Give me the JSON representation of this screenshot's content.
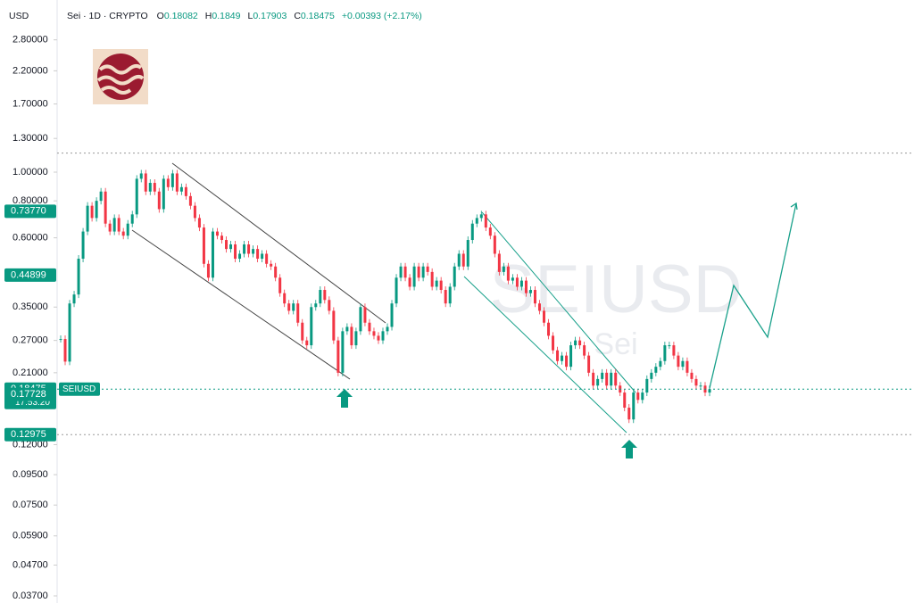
{
  "chart_data": {
    "type": "candlestick",
    "currency": "USD",
    "title": "Sei · 1D · CRYPTO",
    "ohlc": [
      {
        "label": "O",
        "value": 0.18082
      },
      {
        "label": "H",
        "value": 0.1849
      },
      {
        "label": "L",
        "value": 0.17903
      },
      {
        "label": "C",
        "value": 0.18475
      }
    ],
    "change": "+0.00393 (+2.17%)",
    "watermark": "SEIUSD",
    "watermark_sub": "Sei",
    "symbol": "SEIUSD",
    "countdown": "17:53:20",
    "log_scale": true,
    "ylim": [
      0.035,
      3.1
    ],
    "yticks": [
      {
        "value": 2.8,
        "label": "2.80000"
      },
      {
        "value": 2.2,
        "label": "2.20000"
      },
      {
        "value": 1.7,
        "label": "1.70000"
      },
      {
        "value": 1.3,
        "label": "1.30000"
      },
      {
        "value": 1.0,
        "label": "1.00000"
      },
      {
        "value": 0.8,
        "label": "0.80000"
      },
      {
        "value": 0.6,
        "label": "0.60000"
      },
      {
        "value": 0.35,
        "label": "0.35000"
      },
      {
        "value": 0.27,
        "label": "0.27000"
      },
      {
        "value": 0.21,
        "label": "0.21000"
      },
      {
        "value": 0.12,
        "label": "0.12000"
      },
      {
        "value": 0.095,
        "label": "0.09500"
      },
      {
        "value": 0.075,
        "label": "0.07500"
      },
      {
        "value": 0.059,
        "label": "0.05900"
      },
      {
        "value": 0.047,
        "label": "0.04700"
      },
      {
        "value": 0.037,
        "label": "0.03700"
      }
    ],
    "price_labels": [
      {
        "value": 0.7377,
        "label": "0.73770"
      },
      {
        "value": 0.44899,
        "label": "0.44899"
      },
      {
        "value": 0.18475,
        "label": "0.18475"
      },
      {
        "value": 0.17728,
        "label": "0.17728"
      },
      {
        "value": 0.12975,
        "label": "0.12975"
      }
    ],
    "hlines": [
      1.16
    ],
    "up_color": "#089981",
    "down_color": "#f23645",
    "values": [
      0.273,
      0.229,
      0.36,
      0.386,
      0.51,
      0.63,
      0.77,
      0.7,
      0.8,
      0.86,
      0.67,
      0.63,
      0.7,
      0.63,
      0.61,
      0.67,
      0.72,
      0.95,
      0.99,
      0.86,
      0.92,
      0.86,
      0.75,
      0.95,
      0.89,
      0.99,
      0.86,
      0.89,
      0.83,
      0.77,
      0.7,
      0.65,
      0.49,
      0.44,
      0.63,
      0.61,
      0.59,
      0.55,
      0.57,
      0.51,
      0.53,
      0.57,
      0.53,
      0.55,
      0.51,
      0.53,
      0.49,
      0.48,
      0.44,
      0.39,
      0.36,
      0.34,
      0.36,
      0.31,
      0.27,
      0.26,
      0.35,
      0.36,
      0.4,
      0.37,
      0.34,
      0.27,
      0.21,
      0.29,
      0.3,
      0.26,
      0.29,
      0.35,
      0.31,
      0.29,
      0.28,
      0.27,
      0.29,
      0.3,
      0.36,
      0.44,
      0.48,
      0.44,
      0.41,
      0.48,
      0.44,
      0.48,
      0.46,
      0.41,
      0.43,
      0.4,
      0.36,
      0.41,
      0.48,
      0.53,
      0.48,
      0.59,
      0.67,
      0.7,
      0.72,
      0.65,
      0.61,
      0.53,
      0.46,
      0.48,
      0.43,
      0.44,
      0.41,
      0.43,
      0.39,
      0.4,
      0.36,
      0.34,
      0.31,
      0.28,
      0.25,
      0.23,
      0.24,
      0.22,
      0.26,
      0.27,
      0.26,
      0.24,
      0.21,
      0.19,
      0.2,
      0.21,
      0.19,
      0.21,
      0.19,
      0.18,
      0.16,
      0.146,
      0.18,
      0.17,
      0.18,
      0.2,
      0.21,
      0.22,
      0.23,
      0.26,
      0.26,
      0.24,
      0.22,
      0.23,
      0.21,
      0.2,
      0.19,
      0.19,
      0.18,
      0.18475
    ]
  }
}
